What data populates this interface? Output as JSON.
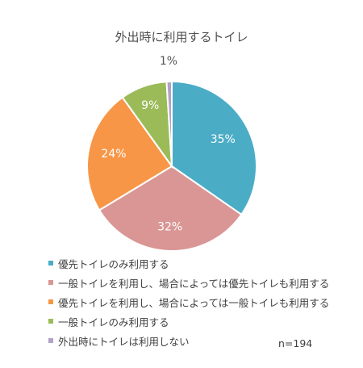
{
  "chart_data": {
    "type": "pie",
    "title": "外出時に利用するトイレ",
    "slices": [
      {
        "label": "優先トイレのみ利用する",
        "value": 35,
        "value_label": "35%",
        "color": "#4bacc6"
      },
      {
        "label": "一般トイレを利用し、場合によっては優先トイレも利用する",
        "value": 32,
        "value_label": "32%",
        "color": "#d99694"
      },
      {
        "label": "優先トイレを利用し、場合によっては一般トイレも利用する",
        "value": 24,
        "value_label": "24%",
        "color": "#f79646"
      },
      {
        "label": "一般トイレのみ利用する",
        "value": 9,
        "value_label": "9%",
        "color": "#9bbb59"
      },
      {
        "label": "外出時にトイレは利用しない",
        "value": 1,
        "value_label": "1%",
        "color": "#b3a2c7"
      }
    ],
    "start": "12 o'clock",
    "direction": "clockwise",
    "legend_position": "bottom",
    "sample_size": "n=194"
  }
}
